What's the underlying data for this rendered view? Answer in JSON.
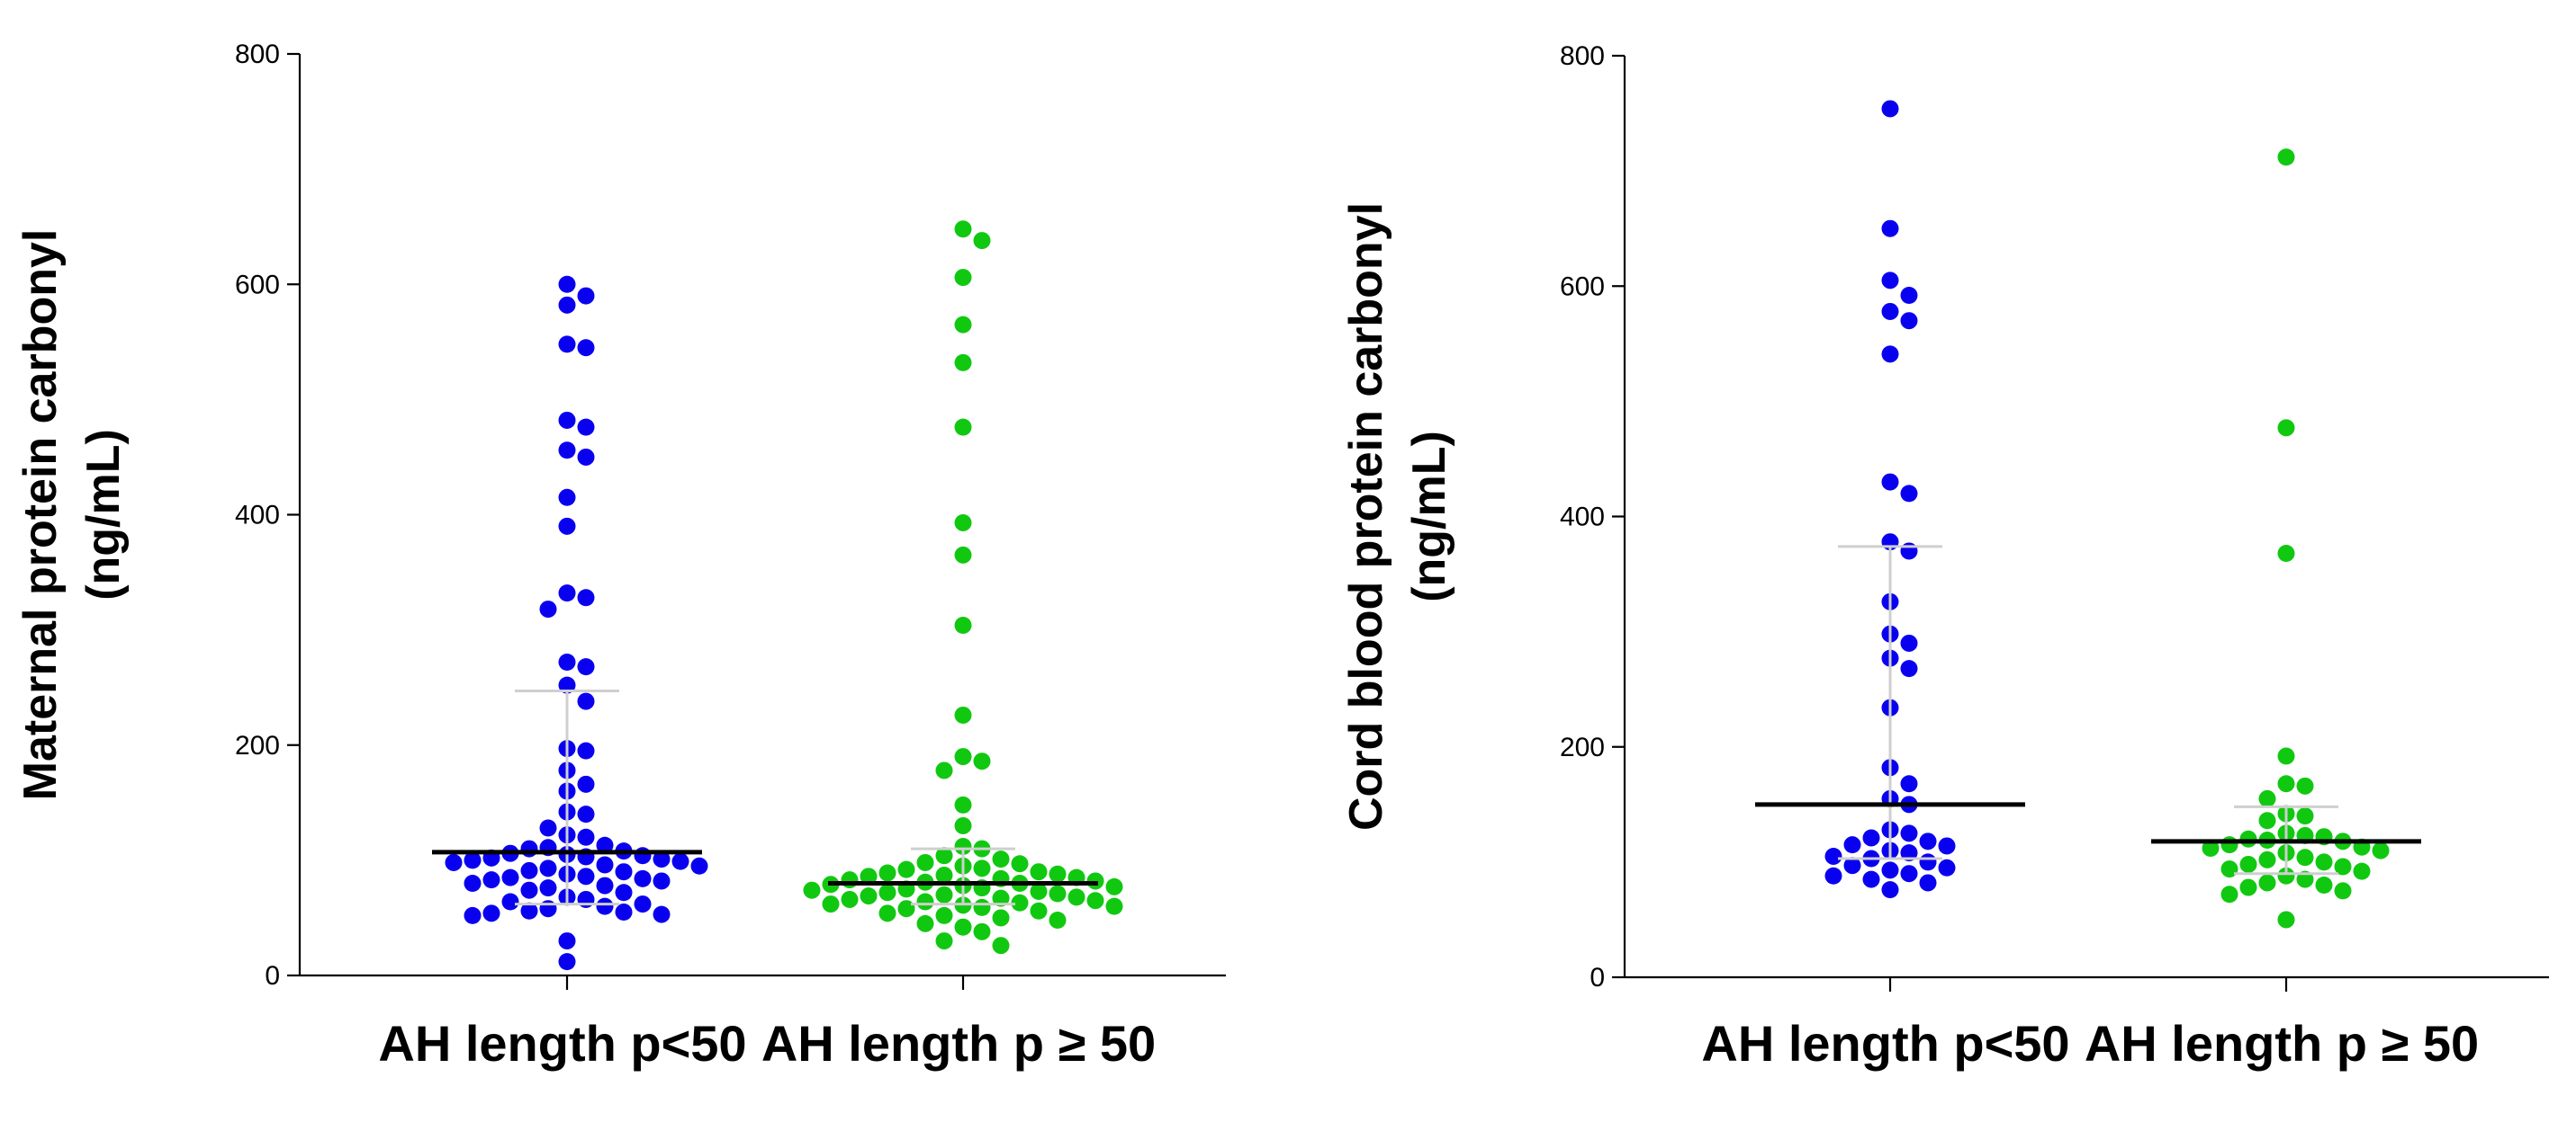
{
  "chart_data": [
    {
      "type": "scatter",
      "subtype": "dot-plot with median and interquartile range",
      "ylabel": [
        "Maternal protein carbonyl",
        "(ng/mL)"
      ],
      "ylim": [
        0,
        800
      ],
      "yticks": [
        0,
        200,
        400,
        600,
        800
      ],
      "categories": [
        "AH length p<50",
        "AH length p ≥ 50"
      ],
      "grid": false,
      "series": [
        {
          "color": "#0a00f0",
          "median": 107,
          "iqr": [
            62,
            247
          ],
          "values": [
            600,
            590,
            582,
            548,
            545,
            482,
            476,
            456,
            450,
            415,
            390,
            332,
            328,
            318,
            272,
            268,
            252,
            238,
            197,
            195,
            178,
            166,
            160,
            142,
            140,
            128,
            122,
            120,
            113,
            111,
            110,
            108,
            106,
            105,
            104,
            103,
            102,
            101,
            100,
            99,
            98,
            96,
            95,
            93,
            91,
            90,
            88,
            86,
            85,
            84,
            83,
            82,
            80,
            78,
            76,
            74,
            72,
            68,
            66,
            64,
            62,
            60,
            58,
            56,
            55,
            54,
            53,
            52,
            30,
            12
          ]
        },
        {
          "color": "#11c811",
          "median": 80,
          "iqr": [
            62,
            110
          ],
          "values": [
            648,
            638,
            606,
            565,
            532,
            476,
            393,
            365,
            304,
            226,
            190,
            186,
            178,
            148,
            130,
            112,
            110,
            104,
            101,
            98,
            97,
            95,
            93,
            92,
            90,
            89,
            88,
            87,
            86,
            85,
            84,
            83,
            82,
            81,
            80,
            79,
            78,
            77,
            76,
            75,
            74,
            73,
            72,
            71,
            70,
            69,
            68,
            67,
            66,
            65,
            64,
            63,
            62,
            61,
            60,
            59,
            58,
            56,
            54,
            52,
            50,
            48,
            45,
            42,
            38,
            30,
            26
          ]
        }
      ]
    },
    {
      "type": "scatter",
      "subtype": "dot-plot with median and interquartile range",
      "ylabel": [
        "Cord blood protein carbonyl",
        "(ng/mL)"
      ],
      "ylim": [
        0,
        800
      ],
      "yticks": [
        0,
        200,
        400,
        600,
        800
      ],
      "categories": [
        "AH length p<50",
        "AH length p ≥ 50"
      ],
      "grid": false,
      "series": [
        {
          "color": "#0a00f0",
          "median": 150,
          "iqr": [
            103,
            374
          ],
          "values": [
            754,
            650,
            605,
            592,
            578,
            570,
            541,
            430,
            420,
            378,
            370,
            326,
            298,
            290,
            277,
            268,
            234,
            182,
            168,
            155,
            150,
            128,
            125,
            121,
            118,
            115,
            114,
            110,
            108,
            105,
            103,
            100,
            97,
            95,
            93,
            90,
            88,
            85,
            82,
            76
          ]
        },
        {
          "color": "#11c811",
          "median": 118,
          "iqr": [
            90,
            148
          ],
          "values": [
            712,
            477,
            368,
            192,
            168,
            166,
            155,
            142,
            140,
            136,
            125,
            123,
            122,
            120,
            119,
            118,
            115,
            113,
            112,
            110,
            108,
            104,
            102,
            100,
            98,
            96,
            94,
            92,
            88,
            85,
            82,
            80,
            78,
            75,
            72,
            50
          ]
        }
      ]
    }
  ]
}
